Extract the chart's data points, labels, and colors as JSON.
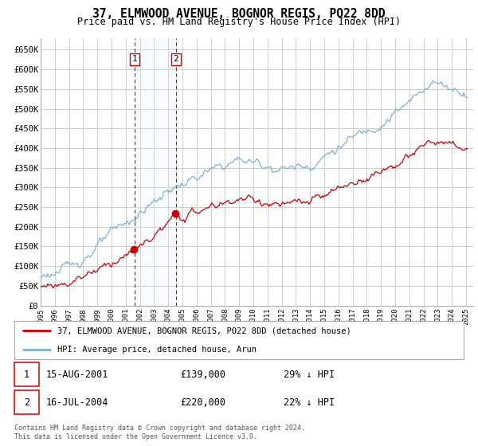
{
  "title": "37, ELMWOOD AVENUE, BOGNOR REGIS, PO22 8DD",
  "subtitle": "Price paid vs. HM Land Registry's House Price Index (HPI)",
  "ylim": [
    0,
    680000
  ],
  "yticks": [
    0,
    50000,
    100000,
    150000,
    200000,
    250000,
    300000,
    350000,
    400000,
    450000,
    500000,
    550000,
    600000,
    650000
  ],
  "ytick_labels": [
    "£0",
    "£50K",
    "£100K",
    "£150K",
    "£200K",
    "£250K",
    "£300K",
    "£350K",
    "£400K",
    "£450K",
    "£500K",
    "£550K",
    "£600K",
    "£650K"
  ],
  "xlim_start": 1995.0,
  "xlim_end": 2025.5,
  "hpi_color": "#7ab4d8",
  "price_color": "#cc0000",
  "transaction1_date": 2001.62,
  "transaction1_price": 139000,
  "transaction2_date": 2004.54,
  "transaction2_price": 220000,
  "legend_label_price": "37, ELMWOOD AVENUE, BOGNOR REGIS, PO22 8DD (detached house)",
  "legend_label_hpi": "HPI: Average price, detached house, Arun",
  "background_color": "#ffffff",
  "grid_color": "#cccccc",
  "shade_color": "#ddeeff",
  "footnote": "Contains HM Land Registry data © Crown copyright and database right 2024.\nThis data is licensed under the Open Government Licence v3.0."
}
